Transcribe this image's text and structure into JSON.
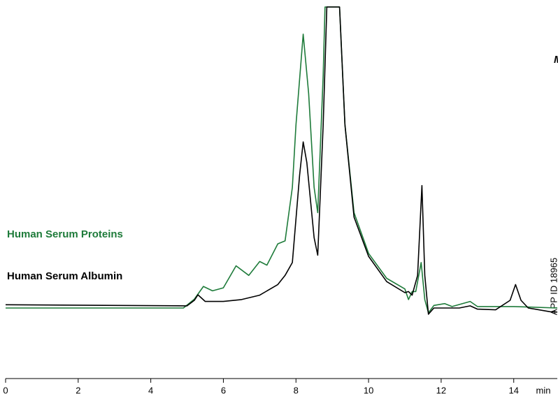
{
  "chart_data": {
    "type": "line",
    "x_label": "min",
    "annotations": [
      "APP ID 18965",
      "M"
    ],
    "xlim": [
      0,
      15.2
    ],
    "xticks": [
      0,
      2,
      4,
      6,
      8,
      10,
      12,
      14
    ],
    "ylim": [
      0,
      100
    ],
    "series": [
      {
        "name": "Human Serum Albumin",
        "color": "#000000",
        "x": [
          0,
          5.0,
          5.2,
          5.3,
          5.5,
          6.0,
          6.5,
          7.0,
          7.5,
          7.7,
          7.9,
          8.1,
          8.2,
          8.3,
          8.5,
          8.6,
          8.75,
          8.85,
          9.2,
          9.35,
          9.6,
          10,
          10.5,
          11.0,
          11.1,
          11.2,
          11.35,
          11.47,
          11.55,
          11.65,
          11.8,
          12.5,
          12.8,
          13.0,
          13.5,
          13.9,
          14.05,
          14.2,
          14.4,
          15.0,
          15.2
        ],
        "values": [
          18.8,
          18.5,
          20.0,
          21.5,
          19.7,
          19.7,
          20.2,
          21.4,
          24.3,
          26.8,
          30.3,
          54.2,
          63.2,
          57.6,
          37.1,
          32.3,
          67.9,
          100,
          100,
          67.9,
          42.7,
          32.0,
          25.1,
          22.1,
          22.4,
          21.4,
          26.8,
          51.3,
          26.8,
          16.2,
          17.9,
          17.9,
          18.5,
          17.6,
          17.4,
          20.0,
          24.3,
          20.0,
          17.9,
          16.9,
          16.8
        ]
      },
      {
        "name": "Human Serum Proteins",
        "color": "#1e7b3a",
        "x": [
          0,
          4.9,
          5.2,
          5.45,
          5.7,
          6.0,
          6.35,
          6.7,
          7.0,
          7.2,
          7.5,
          7.7,
          7.9,
          8.0,
          8.2,
          8.35,
          8.5,
          8.6,
          8.75,
          8.8,
          9.2,
          9.35,
          9.6,
          10,
          10.5,
          11.0,
          11.1,
          11.2,
          11.3,
          11.45,
          11.55,
          11.65,
          11.8,
          12.1,
          12.3,
          12.8,
          13.0,
          14.0,
          15.2
        ],
        "values": [
          17.9,
          17.9,
          20.3,
          23.8,
          22.6,
          23.4,
          29.4,
          26.8,
          30.6,
          29.6,
          35.4,
          36.2,
          50.8,
          67.9,
          92.6,
          76.4,
          50.8,
          43.9,
          81.5,
          100,
          100,
          67.9,
          43.9,
          32.8,
          26.0,
          23.1,
          20.2,
          22.4,
          22.4,
          30.3,
          20.2,
          16.6,
          18.6,
          19.1,
          18.3,
          19.7,
          18.3,
          18.3,
          17.9
        ]
      }
    ]
  }
}
